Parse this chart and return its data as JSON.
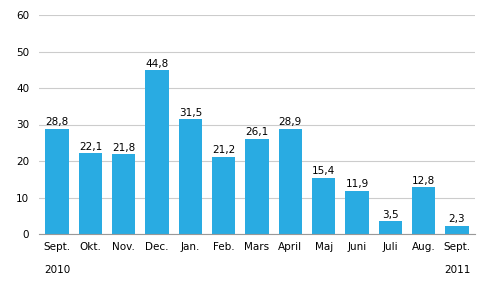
{
  "categories": [
    "Sept.",
    "Okt.",
    "Nov.",
    "Dec.",
    "Jan.",
    "Feb.",
    "Mars",
    "April",
    "Maj",
    "Juni",
    "Juli",
    "Aug.",
    "Sept."
  ],
  "values": [
    28.8,
    22.1,
    21.8,
    44.8,
    31.5,
    21.2,
    26.1,
    28.9,
    15.4,
    11.9,
    3.5,
    12.8,
    2.3
  ],
  "bar_color": "#29ABE2",
  "ylim": [
    0,
    60
  ],
  "yticks": [
    0,
    10,
    20,
    30,
    40,
    50,
    60
  ],
  "background_color": "#ffffff",
  "grid_color": "#cccccc",
  "label_fontsize": 7.5,
  "value_fontsize": 7.5,
  "year_fontsize": 7.5,
  "bar_width": 0.7
}
